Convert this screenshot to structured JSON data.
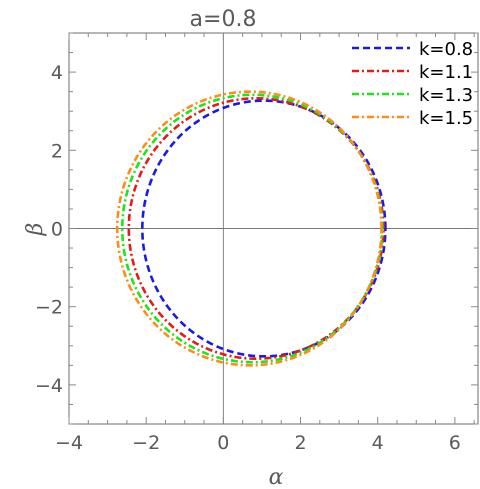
{
  "chart_data": {
    "type": "line",
    "title": "a=0.8",
    "xlabel": "α",
    "ylabel": "β",
    "xlim": [
      -4,
      6.6
    ],
    "ylim": [
      -5,
      5
    ],
    "xticks": [
      -4,
      -2,
      0,
      2,
      4,
      6
    ],
    "yticks": [
      -4,
      -2,
      0,
      2,
      4
    ],
    "xtick_labels": [
      "−4",
      "−2",
      "0",
      "2",
      "4",
      "6"
    ],
    "ytick_labels": [
      "−4",
      "−2",
      "0",
      "2",
      "4"
    ],
    "grid": false,
    "frame": true,
    "legend_position": "top-right",
    "series": [
      {
        "name": "k=0.8",
        "color": "#1a1ae6",
        "dash": "dashed",
        "center": [
          1.05,
          0.0
        ],
        "left_x": -2.1,
        "right_x": 4.2,
        "top_y": 3.27,
        "bottom_y": -3.27
      },
      {
        "name": "k=1.1",
        "color": "#e61a1a",
        "dash": "dash-dot",
        "center": [
          0.85,
          0.0
        ],
        "left_x": -2.45,
        "right_x": 4.15,
        "top_y": 3.33,
        "bottom_y": -3.33
      },
      {
        "name": "k=1.3",
        "color": "#1ae61a",
        "dash": "dash-dot",
        "center": [
          0.75,
          0.0
        ],
        "left_x": -2.62,
        "right_x": 4.12,
        "top_y": 3.42,
        "bottom_y": -3.42
      },
      {
        "name": "k=1.5",
        "color": "#ff8c1a",
        "dash": "dash-dot",
        "center": [
          0.7,
          0.0
        ],
        "left_x": -2.75,
        "right_x": 4.1,
        "top_y": 3.5,
        "bottom_y": -3.5
      }
    ]
  }
}
